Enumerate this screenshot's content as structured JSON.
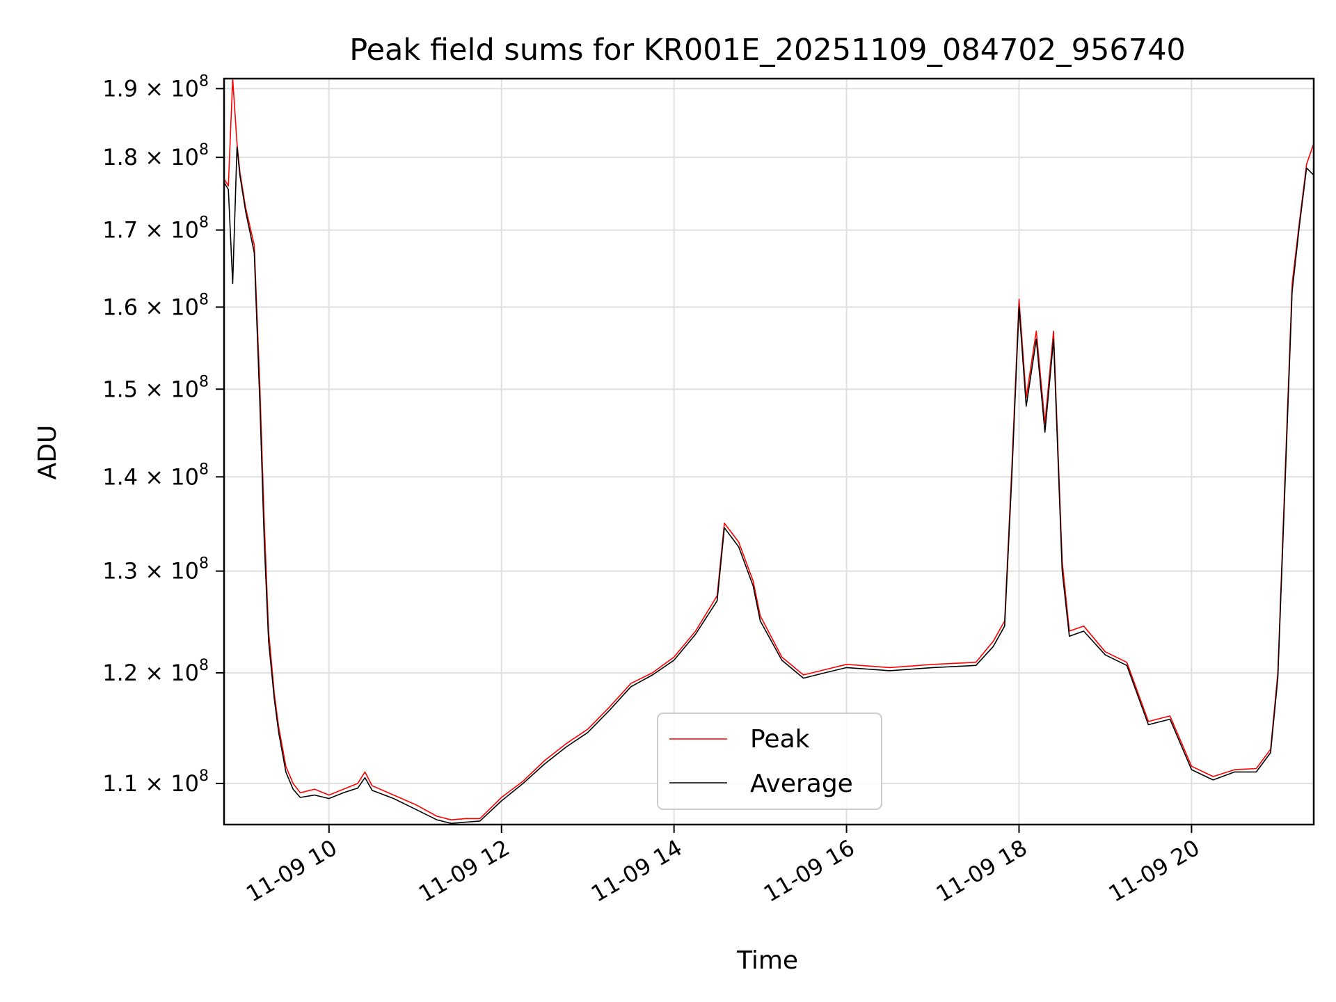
{
  "chart_data": {
    "type": "line",
    "title": "Peak field sums for KR001E_20251109_084702_956740",
    "xlabel": "Time",
    "ylabel": "ADU",
    "y_scale": "log",
    "grid": true,
    "legend_position": "lower-center",
    "xlim": [
      "2025-11-09 08:47",
      "2025-11-09 21:25"
    ],
    "ylim": [
      106500000,
      191500000
    ],
    "x_ticks": [
      {
        "value": "2025-11-09 10:00",
        "label": "11-09 10"
      },
      {
        "value": "2025-11-09 12:00",
        "label": "11-09 12"
      },
      {
        "value": "2025-11-09 14:00",
        "label": "11-09 14"
      },
      {
        "value": "2025-11-09 16:00",
        "label": "11-09 16"
      },
      {
        "value": "2025-11-09 18:00",
        "label": "11-09 18"
      },
      {
        "value": "2025-11-09 20:00",
        "label": "11-09 20"
      }
    ],
    "y_ticks": [
      {
        "value": 110000000,
        "mantissa": "1.1",
        "base": "10",
        "exponent": "8"
      },
      {
        "value": 120000000,
        "mantissa": "1.2",
        "base": "10",
        "exponent": "8"
      },
      {
        "value": 130000000,
        "mantissa": "1.3",
        "base": "10",
        "exponent": "8"
      },
      {
        "value": 140000000,
        "mantissa": "1.4",
        "base": "10",
        "exponent": "8"
      },
      {
        "value": 150000000,
        "mantissa": "1.5",
        "base": "10",
        "exponent": "8"
      },
      {
        "value": 160000000,
        "mantissa": "1.6",
        "base": "10",
        "exponent": "8"
      },
      {
        "value": 170000000,
        "mantissa": "1.7",
        "base": "10",
        "exponent": "8"
      },
      {
        "value": 180000000,
        "mantissa": "1.8",
        "base": "10",
        "exponent": "8"
      },
      {
        "value": 190000000,
        "mantissa": "1.9",
        "base": "10",
        "exponent": "8"
      }
    ],
    "x": [
      "2025-11-09 08:47",
      "2025-11-09 08:50",
      "2025-11-09 08:53",
      "2025-11-09 08:56",
      "2025-11-09 08:58",
      "2025-11-09 09:02",
      "2025-11-09 09:08",
      "2025-11-09 09:12",
      "2025-11-09 09:15",
      "2025-11-09 09:18",
      "2025-11-09 09:22",
      "2025-11-09 09:25",
      "2025-11-09 09:30",
      "2025-11-09 09:35",
      "2025-11-09 09:40",
      "2025-11-09 09:50",
      "2025-11-09 10:00",
      "2025-11-09 10:10",
      "2025-11-09 10:20",
      "2025-11-09 10:25",
      "2025-11-09 10:30",
      "2025-11-09 10:45",
      "2025-11-09 11:00",
      "2025-11-09 11:15",
      "2025-11-09 11:25",
      "2025-11-09 11:35",
      "2025-11-09 11:45",
      "2025-11-09 12:00",
      "2025-11-09 12:15",
      "2025-11-09 12:30",
      "2025-11-09 12:45",
      "2025-11-09 13:00",
      "2025-11-09 13:15",
      "2025-11-09 13:30",
      "2025-11-09 13:45",
      "2025-11-09 14:00",
      "2025-11-09 14:15",
      "2025-11-09 14:30",
      "2025-11-09 14:35",
      "2025-11-09 14:45",
      "2025-11-09 14:55",
      "2025-11-09 15:00",
      "2025-11-09 15:15",
      "2025-11-09 15:30",
      "2025-11-09 15:45",
      "2025-11-09 16:00",
      "2025-11-09 16:30",
      "2025-11-09 17:00",
      "2025-11-09 17:30",
      "2025-11-09 17:42",
      "2025-11-09 17:50",
      "2025-11-09 17:55",
      "2025-11-09 18:00",
      "2025-11-09 18:05",
      "2025-11-09 18:12",
      "2025-11-09 18:18",
      "2025-11-09 18:24",
      "2025-11-09 18:30",
      "2025-11-09 18:35",
      "2025-11-09 18:45",
      "2025-11-09 19:00",
      "2025-11-09 19:15",
      "2025-11-09 19:30",
      "2025-11-09 19:45",
      "2025-11-09 20:00",
      "2025-11-09 20:15",
      "2025-11-09 20:30",
      "2025-11-09 20:45",
      "2025-11-09 20:55",
      "2025-11-09 21:00",
      "2025-11-09 21:05",
      "2025-11-09 21:10",
      "2025-11-09 21:15",
      "2025-11-09 21:20",
      "2025-11-09 21:25"
    ],
    "series": [
      {
        "name": "Peak",
        "color": "#ff0000",
        "values": [
          177000000,
          176000000,
          191500000,
          182000000,
          178000000,
          173000000,
          168000000,
          150000000,
          135000000,
          124000000,
          118000000,
          115000000,
          111500000,
          110000000,
          109200000,
          109500000,
          109000000,
          109500000,
          110000000,
          111000000,
          109800000,
          109000000,
          108200000,
          107200000,
          106900000,
          107000000,
          107000000,
          108800000,
          110200000,
          112000000,
          113500000,
          114800000,
          116800000,
          119000000,
          120000000,
          121500000,
          124000000,
          127500000,
          135000000,
          133000000,
          129000000,
          125500000,
          121500000,
          119800000,
          120300000,
          120800000,
          120500000,
          120800000,
          121000000,
          123000000,
          125000000,
          141000000,
          161000000,
          149000000,
          157000000,
          146000000,
          157000000,
          131000000,
          124000000,
          124500000,
          122000000,
          121000000,
          115500000,
          116000000,
          111500000,
          110600000,
          111200000,
          111300000,
          113000000,
          120000000,
          140000000,
          163000000,
          171000000,
          179000000,
          182000000
        ]
      },
      {
        "name": "Average",
        "color": "#000000",
        "values": [
          176500000,
          175500000,
          163000000,
          181500000,
          177500000,
          172500000,
          167000000,
          148000000,
          133000000,
          123000000,
          117500000,
          114500000,
          111000000,
          109500000,
          108800000,
          109000000,
          108700000,
          109200000,
          109600000,
          110500000,
          109400000,
          108700000,
          107800000,
          106900000,
          106600000,
          106700000,
          106800000,
          108500000,
          110000000,
          111700000,
          113200000,
          114500000,
          116500000,
          118700000,
          119800000,
          121200000,
          123700000,
          127000000,
          134500000,
          132500000,
          128500000,
          125000000,
          121200000,
          119500000,
          120000000,
          120500000,
          120200000,
          120500000,
          120700000,
          122500000,
          124500000,
          140000000,
          160000000,
          148000000,
          156000000,
          145000000,
          156000000,
          130000000,
          123500000,
          124000000,
          121700000,
          120700000,
          115200000,
          115700000,
          111200000,
          110300000,
          111000000,
          111000000,
          112700000,
          119500000,
          139000000,
          162000000,
          170500000,
          178500000,
          177500000
        ]
      }
    ]
  }
}
